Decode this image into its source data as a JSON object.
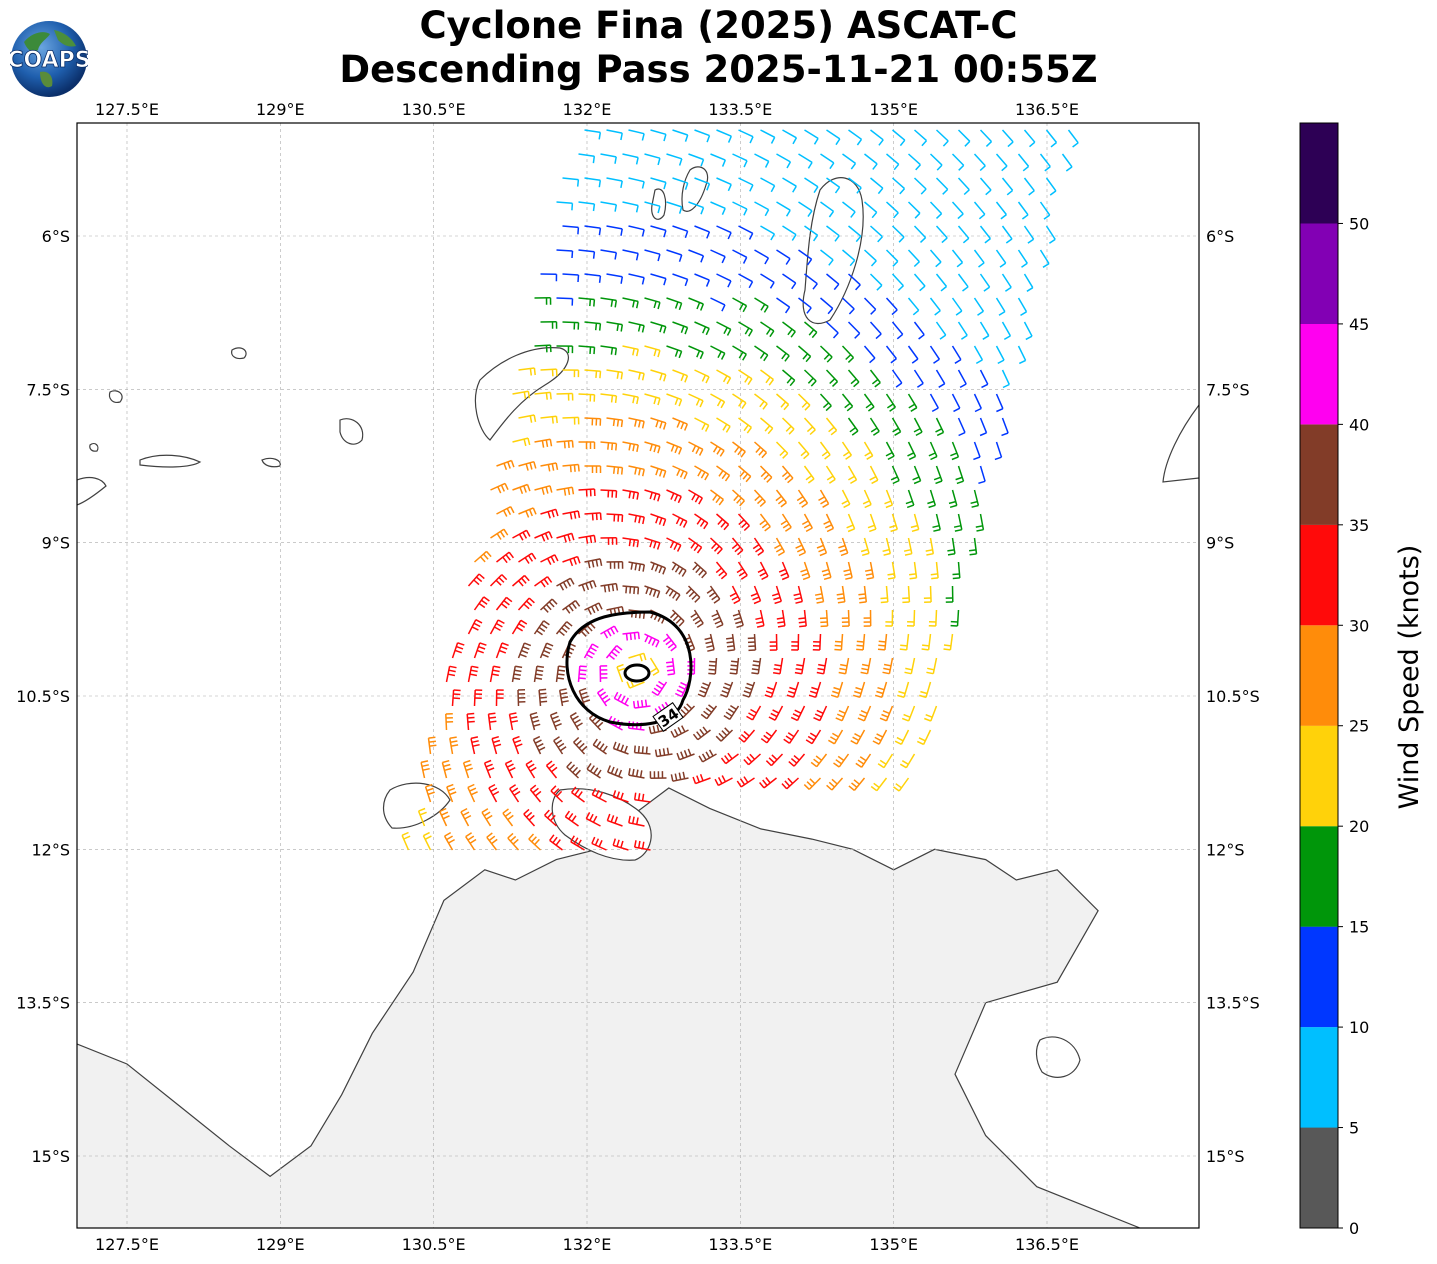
{
  "title": {
    "line1": "Cyclone Fina (2025) ASCAT-C",
    "line2": "Descending Pass 2025-11-21 00:55Z"
  },
  "logo": {
    "text": "COAPS",
    "icon": "globe-logo"
  },
  "map": {
    "lon_ticks": [
      "127.5°E",
      "129°E",
      "130.5°E",
      "132°E",
      "133.5°E",
      "135°E",
      "136.5°E"
    ],
    "lat_ticks": [
      "6°S",
      "7.5°S",
      "9°S",
      "10.5°S",
      "12°S",
      "13.5°S",
      "15°S"
    ],
    "contour_label": "34",
    "coast_color": "#404040"
  },
  "colorbar": {
    "label": "Wind Speed (knots)",
    "ticks": [
      "0",
      "5",
      "10",
      "15",
      "20",
      "25",
      "30",
      "35",
      "40",
      "45",
      "50"
    ],
    "bands": [
      {
        "min": 0,
        "max": 5,
        "color": "#585858"
      },
      {
        "min": 5,
        "max": 10,
        "color": "#00bfff"
      },
      {
        "min": 10,
        "max": 15,
        "color": "#0037ff"
      },
      {
        "min": 15,
        "max": 20,
        "color": "#00960a"
      },
      {
        "min": 20,
        "max": 25,
        "color": "#ffd20a"
      },
      {
        "min": 25,
        "max": 30,
        "color": "#ff8c0a"
      },
      {
        "min": 30,
        "max": 35,
        "color": "#ff0a0a"
      },
      {
        "min": 35,
        "max": 40,
        "color": "#823c28"
      },
      {
        "min": 40,
        "max": 45,
        "color": "#ff00f0"
      },
      {
        "min": 45,
        "max": 50,
        "color": "#8200b4"
      },
      {
        "min": 50,
        "max": 55,
        "color": "#2d0055"
      }
    ]
  }
}
